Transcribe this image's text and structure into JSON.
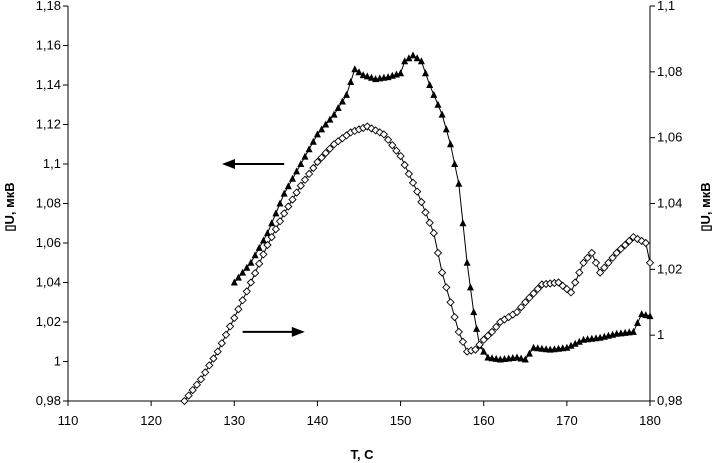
{
  "chart_data": {
    "type": "scatter",
    "title": "",
    "xlabel": "T, C",
    "ylabel_left": "▯U, мкВ",
    "ylabel_right": "▯U, мкВ",
    "xlim": [
      110,
      180
    ],
    "ylim_left": [
      0.98,
      1.18
    ],
    "ylim_right": [
      0.98,
      1.1
    ],
    "grid": false,
    "legend": "none",
    "x_ticks": [
      "110",
      "120",
      "130",
      "140",
      "150",
      "160",
      "170",
      "180"
    ],
    "y_left_ticks": [
      "0,98",
      "1",
      "1,02",
      "1,04",
      "1,06",
      "1,08",
      "1,1",
      "1,12",
      "1,14",
      "1,16",
      "1,18"
    ],
    "y_right_ticks": [
      "0,98",
      "1",
      "1,02",
      "1,04",
      "1,06",
      "1,08",
      "1,1"
    ],
    "series": [
      {
        "marker": "filled-triangle",
        "axis": "left",
        "color": "#000000",
        "points": [
          [
            130,
            1.04
          ],
          [
            132,
            1.05
          ],
          [
            134,
            1.065
          ],
          [
            136,
            1.085
          ],
          [
            138,
            1.1
          ],
          [
            140,
            1.115
          ],
          [
            142,
            1.125
          ],
          [
            143.5,
            1.135
          ],
          [
            144.5,
            1.148
          ],
          [
            145.5,
            1.145
          ],
          [
            147,
            1.143
          ],
          [
            148.5,
            1.144
          ],
          [
            150,
            1.146
          ],
          [
            150.5,
            1.152
          ],
          [
            151.5,
            1.155
          ],
          [
            152.5,
            1.152
          ],
          [
            153.5,
            1.14
          ],
          [
            155,
            1.125
          ],
          [
            156,
            1.11
          ],
          [
            157,
            1.09
          ],
          [
            158,
            1.05
          ],
          [
            158.8,
            1.025
          ],
          [
            159.5,
            1.008
          ],
          [
            160.5,
            1.002
          ],
          [
            162,
            1.001
          ],
          [
            164,
            1.002
          ],
          [
            165,
            1.001
          ],
          [
            166,
            1.007
          ],
          [
            168,
            1.006
          ],
          [
            170,
            1.007
          ],
          [
            172,
            1.011
          ],
          [
            174,
            1.012
          ],
          [
            176,
            1.014
          ],
          [
            178,
            1.015
          ],
          [
            179,
            1.024
          ],
          [
            180,
            1.023
          ]
        ]
      },
      {
        "marker": "hollow-diamond",
        "axis": "right",
        "color": "#000000",
        "points": [
          [
            124,
            0.98
          ],
          [
            126,
            0.9866
          ],
          [
            128,
            0.995
          ],
          [
            130,
            1.0052
          ],
          [
            132,
            1.016
          ],
          [
            134,
            1.0274
          ],
          [
            136,
            1.037
          ],
          [
            138,
            1.0454
          ],
          [
            140,
            1.0526
          ],
          [
            142,
            1.058
          ],
          [
            144,
            1.0616
          ],
          [
            146,
            1.0634
          ],
          [
            148,
            1.061
          ],
          [
            150,
            1.0544
          ],
          [
            152,
            1.0436
          ],
          [
            154,
            1.031
          ],
          [
            155,
            1.019
          ],
          [
            156,
            1.01
          ],
          [
            157,
            1.001
          ],
          [
            158,
            0.995
          ],
          [
            159,
            0.9956
          ],
          [
            160,
            0.9986
          ],
          [
            161,
            1.001
          ],
          [
            162,
            1.004
          ],
          [
            164,
            1.007
          ],
          [
            165,
            1.01
          ],
          [
            167,
            1.0154
          ],
          [
            169,
            1.016
          ],
          [
            170.5,
            1.013
          ],
          [
            172,
            1.022
          ],
          [
            173,
            1.025
          ],
          [
            174,
            1.019
          ],
          [
            176,
            1.025
          ],
          [
            178,
            1.0298
          ],
          [
            179.5,
            1.028
          ],
          [
            180,
            1.022
          ]
        ]
      }
    ],
    "annotations": [
      {
        "shape": "arrow",
        "direction": "left",
        "from": [
          136,
          1.1
        ],
        "to": [
          129,
          1.1
        ],
        "axis": "left"
      },
      {
        "shape": "arrow",
        "direction": "right",
        "from": [
          131,
          1.015
        ],
        "to": [
          138,
          1.015
        ],
        "axis": "left"
      }
    ]
  }
}
